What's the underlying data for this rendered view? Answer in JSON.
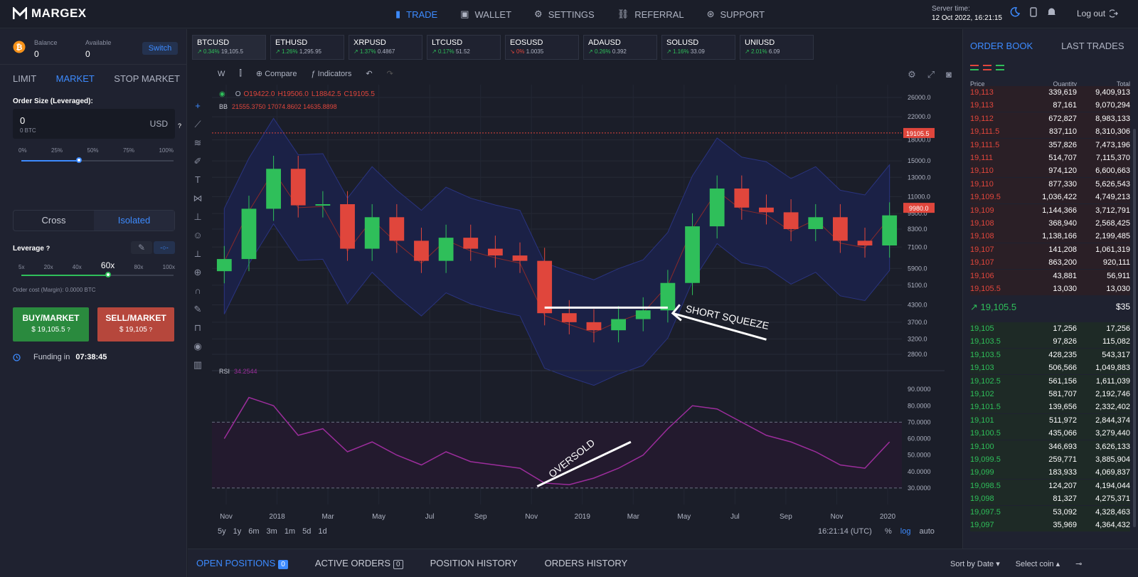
{
  "brand": "MARGEX",
  "nav": [
    {
      "label": "TRADE",
      "icon": "chart-bars-icon"
    },
    {
      "label": "WALLET",
      "icon": "wallet-icon"
    },
    {
      "label": "SETTINGS",
      "icon": "gear-icon"
    },
    {
      "label": "REFERRAL",
      "icon": "link-icon"
    },
    {
      "label": "SUPPORT",
      "icon": "lifebuoy-icon"
    }
  ],
  "server": {
    "label": "Server time:",
    "time": "12 Oct 2022, 16:21:15"
  },
  "logout": "Log out",
  "left": {
    "balance_label": "Balance",
    "balance": "0",
    "available_label": "Available",
    "available": "0",
    "switch": "Switch",
    "tabs": [
      "LIMIT",
      "MARKET",
      "STOP MARKET"
    ],
    "order_size_label": "Order Size (Leveraged):",
    "order_value": "0",
    "order_btc": "0 BTC",
    "currency": "USD",
    "pct": [
      "0%",
      "25%",
      "50%",
      "75%",
      "100%"
    ],
    "cross": "Cross",
    "isolated": "Isolated",
    "leverage_label": "Leverage",
    "lev": [
      "5x",
      "20x",
      "40x",
      "60x",
      "80x",
      "100x"
    ],
    "order_cost": "Order cost (Margin): 0.0000 BTC",
    "buy_label": "BUY/MARKET",
    "buy_price": "$ 19,105.5",
    "sell_label": "SELL/MARKET",
    "sell_price": "$ 19,105",
    "funding_label": "Funding in",
    "funding_time": "07:38:45"
  },
  "tickers": [
    {
      "sym": "BTCUSD",
      "chg": "0.34%",
      "price": "19,105.5",
      "dir": "up"
    },
    {
      "sym": "ETHUSD",
      "chg": "1.26%",
      "price": "1,295.95",
      "dir": "up"
    },
    {
      "sym": "XRPUSD",
      "chg": "1.37%",
      "price": "0.4867",
      "dir": "up"
    },
    {
      "sym": "LTCUSD",
      "chg": "0.17%",
      "price": "51.52",
      "dir": "up"
    },
    {
      "sym": "EOSUSD",
      "chg": "0%",
      "price": "1.0035",
      "dir": "dn"
    },
    {
      "sym": "ADAUSD",
      "chg": "0.26%",
      "price": "0.392",
      "dir": "up"
    },
    {
      "sym": "SOLUSD",
      "chg": "1.16%",
      "price": "33.09",
      "dir": "up"
    },
    {
      "sym": "UNIUSD",
      "chg": "2.01%",
      "price": "6.09",
      "dir": "up"
    }
  ],
  "toolbar": {
    "interval": "W",
    "compare": "Compare",
    "indicators": "Indicators"
  },
  "ohlc": {
    "o": "O19422.0",
    "h": "H19506.0",
    "l": "L18842.5",
    "c": "C19105.5"
  },
  "bb_label": "BB",
  "bb_vals": "21555.3750  17074.8602  14635.8898",
  "rsi_label": "RSI",
  "rsi_val": "34.2544",
  "annotations": {
    "squeeze": "SHORT SQUEEZE",
    "oversold": "OVERSOLD"
  },
  "price_tag": "19105.5",
  "price_tag2": "9980.0",
  "price_axis": [
    "26000.0",
    "22000.0",
    "18000.0",
    "15000.0",
    "13000.0",
    "11000.0",
    "9500.0",
    "8300.0",
    "7100.0",
    "5900.0",
    "5100.0",
    "4300.0",
    "3700.0",
    "3200.0",
    "2800.0"
  ],
  "rsi_axis": [
    "90.0000",
    "80.0000",
    "70.0000",
    "60.0000",
    "50.0000",
    "40.0000",
    "30.0000"
  ],
  "time_axis": [
    "Nov",
    "2018",
    "Mar",
    "May",
    "Jul",
    "Sep",
    "Nov",
    "2019",
    "Mar",
    "May",
    "Jul",
    "Sep",
    "Nov",
    "2020"
  ],
  "ranges": [
    "5y",
    "1y",
    "6m",
    "3m",
    "1m",
    "5d",
    "1d"
  ],
  "clock": "16:21:14 (UTC)",
  "pct": "%",
  "log": "log",
  "auto": "auto",
  "chart_data": {
    "type": "candlestick",
    "title": "BTCUSD",
    "ylabel": "",
    "scale": "log",
    "ylim": [
      2600,
      28000
    ],
    "x": [
      "2017-10",
      "2017-11",
      "2017-12",
      "2018-01",
      "2018-02",
      "2018-03",
      "2018-04",
      "2018-05",
      "2018-06",
      "2018-07",
      "2018-08",
      "2018-09",
      "2018-10",
      "2018-11",
      "2018-12",
      "2019-01",
      "2019-02",
      "2019-03",
      "2019-04",
      "2019-05",
      "2019-06",
      "2019-07",
      "2019-08",
      "2019-09",
      "2019-10",
      "2019-11",
      "2019-12",
      "2020-01"
    ],
    "close": [
      6400,
      9900,
      14000,
      10200,
      10300,
      7000,
      9200,
      7500,
      6300,
      7700,
      7000,
      6600,
      6300,
      4000,
      3700,
      3450,
      3800,
      4100,
      5200,
      8500,
      11800,
      10000,
      9600,
      8300,
      9200,
      7500,
      7200,
      9350
    ],
    "rsi": [
      60,
      85,
      80,
      62,
      66,
      52,
      58,
      50,
      44,
      52,
      46,
      44,
      42,
      33,
      32,
      36,
      42,
      50,
      66,
      80,
      78,
      70,
      62,
      58,
      52,
      44,
      42,
      58
    ]
  },
  "orderbook": {
    "tabs": [
      "ORDER BOOK",
      "LAST TRADES"
    ],
    "headers": [
      "Price",
      "Quantity",
      "Total"
    ],
    "asks": [
      [
        "19,113",
        "339,619",
        "9,409,913"
      ],
      [
        "19,113",
        "87,161",
        "9,070,294"
      ],
      [
        "19,112",
        "672,827",
        "8,983,133"
      ],
      [
        "19,111.5",
        "837,110",
        "8,310,306"
      ],
      [
        "19,111.5",
        "357,826",
        "7,473,196"
      ],
      [
        "19,111",
        "514,707",
        "7,115,370"
      ],
      [
        "19,110",
        "974,120",
        "6,600,663"
      ],
      [
        "19,110",
        "877,330",
        "5,626,543"
      ],
      [
        "19,109.5",
        "1,036,422",
        "4,749,213"
      ],
      [
        "19,109",
        "1,144,366",
        "3,712,791"
      ],
      [
        "19,108",
        "368,940",
        "2,568,425"
      ],
      [
        "19,108",
        "1,138,166",
        "2,199,485"
      ],
      [
        "19,107",
        "141,208",
        "1,061,319"
      ],
      [
        "19,107",
        "863,200",
        "920,111"
      ],
      [
        "19,106",
        "43,881",
        "56,911"
      ],
      [
        "19,105.5",
        "13,030",
        "13,030"
      ]
    ],
    "mid_price": "19,105.5",
    "mid_total": "$35",
    "bids": [
      [
        "19,105",
        "17,256",
        "17,256"
      ],
      [
        "19,103.5",
        "97,826",
        "115,082"
      ],
      [
        "19,103.5",
        "428,235",
        "543,317"
      ],
      [
        "19,103",
        "506,566",
        "1,049,883"
      ],
      [
        "19,102.5",
        "561,156",
        "1,611,039"
      ],
      [
        "19,102",
        "581,707",
        "2,192,746"
      ],
      [
        "19,101.5",
        "139,656",
        "2,332,402"
      ],
      [
        "19,101",
        "511,972",
        "2,844,374"
      ],
      [
        "19,100.5",
        "435,066",
        "3,279,440"
      ],
      [
        "19,100",
        "346,693",
        "3,626,133"
      ],
      [
        "19,099.5",
        "259,771",
        "3,885,904"
      ],
      [
        "19,099",
        "183,933",
        "4,069,837"
      ],
      [
        "19,098.5",
        "124,207",
        "4,194,044"
      ],
      [
        "19,098",
        "81,327",
        "4,275,371"
      ],
      [
        "19,097.5",
        "53,092",
        "4,328,463"
      ],
      [
        "19,097",
        "35,969",
        "4,364,432"
      ]
    ]
  },
  "bottom": {
    "tabs": [
      "OPEN POSITIONS",
      "ACTIVE ORDERS",
      "POSITION HISTORY",
      "ORDERS HISTORY"
    ],
    "counts": [
      "0",
      "0"
    ],
    "sort": "Sort by Date",
    "coin": "Select coin"
  }
}
